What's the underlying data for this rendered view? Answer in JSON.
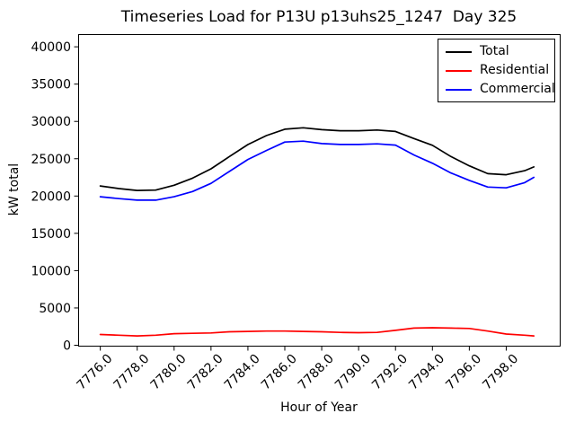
{
  "chart_data": {
    "type": "line",
    "title": "Timeseries Load for P13U p13uhs25_1247  Day 325",
    "xlabel": "Hour of Year",
    "ylabel": "kW total",
    "grid": false,
    "legend_position": "upper right",
    "xlim": [
      7774.8,
      7800.9
    ],
    "ylim": [
      -60,
      41700
    ],
    "xticks": [
      7776,
      7778,
      7780,
      7782,
      7784,
      7786,
      7788,
      7790,
      7792,
      7794,
      7796,
      7798
    ],
    "xticklabels": [
      "7776.0",
      "7778.0",
      "7780.0",
      "7782.0",
      "7784.0",
      "7786.0",
      "7788.0",
      "7790.0",
      "7792.0",
      "7794.0",
      "7796.0",
      "7798.0"
    ],
    "yticks": [
      0,
      5000,
      10000,
      15000,
      20000,
      25000,
      30000,
      35000,
      40000
    ],
    "yticklabels": [
      "0",
      "5000",
      "10000",
      "15000",
      "20000",
      "25000",
      "30000",
      "35000",
      "40000"
    ],
    "x": [
      7776,
      7777,
      7778,
      7779,
      7780,
      7781,
      7782,
      7783,
      7784,
      7785,
      7786,
      7787,
      7788,
      7789,
      7790,
      7791,
      7792,
      7793,
      7794,
      7795,
      7796,
      7797,
      7798,
      7799,
      7799.5
    ],
    "series": [
      {
        "name": "Total",
        "color": "#000000",
        "values": [
          21350,
          21000,
          20750,
          20800,
          21450,
          22400,
          23650,
          25300,
          26900,
          28100,
          28950,
          29150,
          28900,
          28750,
          28750,
          28850,
          28650,
          27700,
          26800,
          25300,
          24050,
          23000,
          22850,
          23400,
          23900
        ]
      },
      {
        "name": "Residential",
        "color": "#ff0000",
        "values": [
          1450,
          1350,
          1250,
          1350,
          1550,
          1600,
          1650,
          1800,
          1850,
          1900,
          1900,
          1850,
          1800,
          1720,
          1680,
          1720,
          2000,
          2300,
          2350,
          2300,
          2250,
          1900,
          1500,
          1350,
          1250
        ]
      },
      {
        "name": "Commercial",
        "color": "#0000ff",
        "values": [
          19900,
          19650,
          19450,
          19450,
          19900,
          20600,
          21700,
          23300,
          24900,
          26100,
          27230,
          27350,
          27030,
          26910,
          26910,
          26990,
          26830,
          25500,
          24400,
          23100,
          22100,
          21200,
          21100,
          21800,
          22500
        ]
      }
    ]
  }
}
